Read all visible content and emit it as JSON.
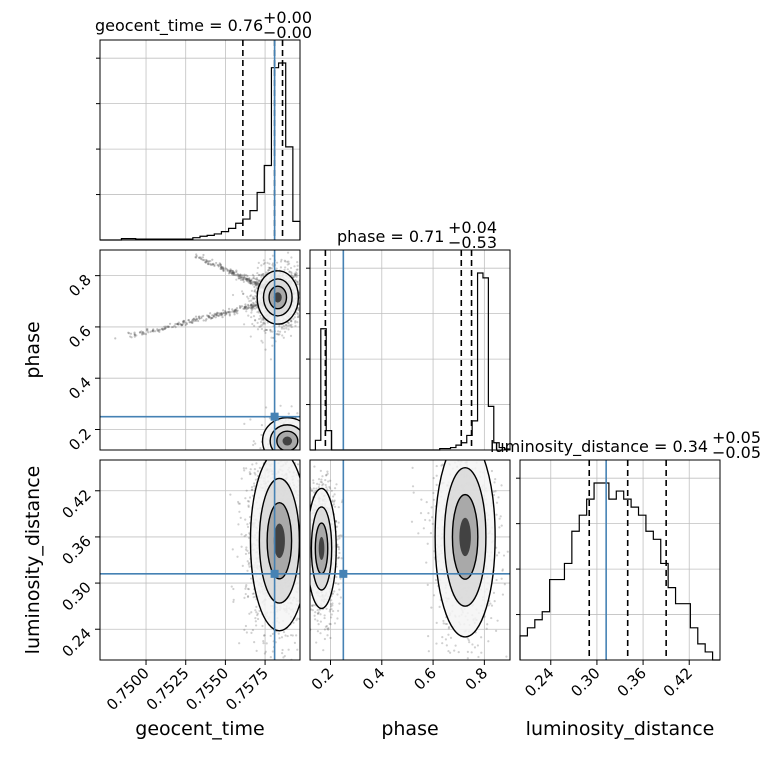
{
  "chart_data": {
    "type": "corner",
    "parameters": [
      "geocent_time",
      "phase",
      "luminosity_distance"
    ],
    "truths": {
      "geocent_time": 0.7581,
      "phase": 0.25,
      "luminosity_distance": 0.312
    },
    "colors": {
      "truth": "#4682b4",
      "hist": "#000000",
      "grid": "#c0c0c0",
      "points": "#555555"
    },
    "grid": true,
    "titles": {
      "geocent_time": {
        "prefix": "geocent_time = 0.76",
        "sup": "+0.00",
        "sub": "−0.00"
      },
      "phase": {
        "prefix": "phase = 0.71",
        "sup": "+0.04",
        "sub": "−0.53"
      },
      "luminosity_distance": {
        "prefix": "luminosity_distance = 0.34",
        "sup": "+0.05",
        "sub": "−0.05"
      }
    },
    "axis_labels": {
      "geocent_time": "geocent_time",
      "phase": "phase",
      "luminosity_distance": "luminosity_distance"
    },
    "ranges": {
      "geocent_time": [
        0.7471,
        0.7597
      ],
      "phase": [
        0.12,
        0.9
      ],
      "luminosity_distance": [
        0.2,
        0.46
      ]
    },
    "ticks": {
      "geocent_time": [
        "0.7500",
        "0.7525",
        "0.7550",
        "0.7575"
      ],
      "phase": [
        "0.2",
        "0.4",
        "0.6",
        "0.8"
      ],
      "luminosity_distance": [
        "0.24",
        "0.30",
        "0.36",
        "0.42"
      ]
    },
    "quantiles": {
      "geocent_time": [
        0.7561,
        0.7581,
        0.7586
      ],
      "phase": [
        0.18,
        0.71,
        0.75
      ],
      "luminosity_distance": [
        0.29,
        0.34,
        0.39
      ]
    },
    "histograms": {
      "geocent_time": {
        "edges": [
          0.7471,
          0.7597
        ],
        "counts": [
          0,
          0,
          0,
          0.3,
          0.3,
          0.2,
          0.2,
          0.2,
          0.2,
          0.2,
          0.2,
          0.2,
          0.2,
          0.5,
          0.8,
          1.0,
          1.3,
          1.8,
          2.5,
          3.6,
          4.5,
          6.3,
          10.2,
          16.0,
          37.0,
          38.0,
          20.0,
          4.0
        ]
      },
      "phase": {
        "edges": [
          0.12,
          0.9
        ],
        "counts": [
          0,
          2,
          25,
          4,
          0,
          0,
          0,
          0,
          0,
          0,
          0,
          0,
          0,
          0,
          0,
          0,
          0,
          0,
          0,
          0,
          0,
          0,
          0,
          0,
          0.3,
          0.3,
          0.5,
          1.0,
          1.5,
          3.0,
          6.0,
          36.5,
          35.5,
          9.0,
          1.5,
          0.5,
          0.2
        ]
      },
      "luminosity_distance": {
        "edges": [
          0.2,
          0.46
        ],
        "counts": [
          3,
          4,
          5,
          6,
          10,
          10,
          12,
          16,
          18,
          20,
          22,
          22,
          20,
          21,
          20,
          19,
          18,
          16,
          15,
          12,
          9,
          7,
          7,
          4,
          2,
          1,
          0
        ]
      }
    },
    "pairs": {
      "phase_vs_geocent_time": {
        "modes": [
          {
            "x": 0.7583,
            "y": 0.715,
            "sx": 0.0005,
            "sy": 0.04,
            "weight": 0.82
          },
          {
            "x": 0.7589,
            "y": 0.155,
            "sx": 0.0006,
            "sy": 0.035,
            "weight": 0.18
          }
        ],
        "tails": [
          {
            "x0": 0.748,
            "y0": 0.55,
            "x1": 0.758,
            "y1": 0.7
          },
          {
            "x0": 0.753,
            "y0": 0.88,
            "x1": 0.758,
            "y1": 0.74
          }
        ]
      },
      "luminosity_distance_vs_geocent_time": {
        "modes": [
          {
            "x": 0.7584,
            "y": 0.355,
            "sx": 0.0007,
            "sy": 0.045,
            "weight": 1.0
          }
        ]
      },
      "luminosity_distance_vs_phase": {
        "modes": [
          {
            "x": 0.165,
            "y": 0.345,
            "sx": 0.022,
            "sy": 0.03,
            "weight": 0.5
          },
          {
            "x": 0.725,
            "y": 0.36,
            "sx": 0.045,
            "sy": 0.05,
            "weight": 0.5
          }
        ]
      }
    }
  }
}
